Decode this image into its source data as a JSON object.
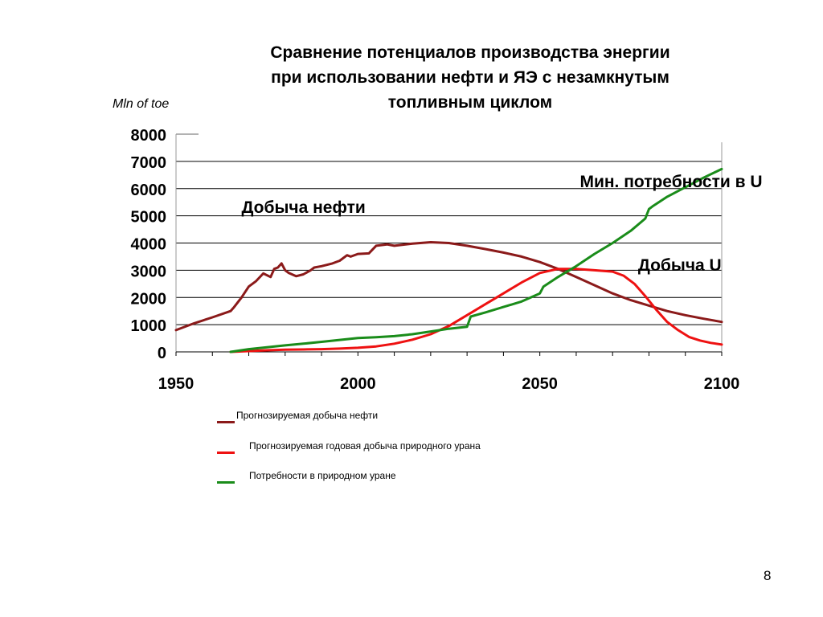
{
  "page_number": "8",
  "chart_data": {
    "type": "line",
    "title_lines": [
      "Сравнение потенциалов производства энергии",
      "при использовании нефти и ЯЭ с незамкнутым",
      "топливным циклом"
    ],
    "ylabel": "Mln of toe",
    "xlabel": "",
    "xlim": [
      1950,
      2100
    ],
    "ylim": [
      0,
      8000
    ],
    "x_ticks": [
      1950,
      2000,
      2050,
      2100
    ],
    "y_ticks": [
      0,
      1000,
      2000,
      3000,
      4000,
      5000,
      6000,
      7000,
      8000
    ],
    "grid": "horizontal",
    "legend_position": "bottom",
    "annotations": [
      {
        "text": "Добыча нефти",
        "x": 1968,
        "y": 5100
      },
      {
        "text": "Мин. потребности в U",
        "x": 2061,
        "y": 6050
      },
      {
        "text": "Добыча U",
        "x": 2077,
        "y": 2980
      }
    ],
    "series": [
      {
        "name": "Прогнозируемая добыча нефти",
        "color": "#8b1a1a",
        "x": [
          1950,
          1955,
          1960,
          1965,
          1966,
          1968,
          1970,
          1972,
          1974,
          1976,
          1977,
          1978,
          1979,
          1980,
          1981,
          1983,
          1985,
          1987,
          1988,
          1990,
          1993,
          1995,
          1997,
          1998,
          2000,
          2003,
          2005,
          2008,
          2010,
          2015,
          2020,
          2025,
          2030,
          2035,
          2040,
          2045,
          2050,
          2055,
          2060,
          2065,
          2070,
          2075,
          2080,
          2085,
          2090,
          2095,
          2100
        ],
        "y": [
          800,
          1050,
          1270,
          1500,
          1650,
          2000,
          2400,
          2600,
          2880,
          2750,
          3050,
          3100,
          3250,
          3000,
          2900,
          2780,
          2850,
          3000,
          3100,
          3150,
          3250,
          3350,
          3550,
          3500,
          3600,
          3620,
          3900,
          3950,
          3900,
          3980,
          4030,
          4000,
          3900,
          3780,
          3650,
          3500,
          3300,
          3050,
          2750,
          2450,
          2150,
          1900,
          1700,
          1500,
          1350,
          1220,
          1100
        ]
      },
      {
        "name": "Прогнозируемая годовая добыча природного урана",
        "color": "#ee1111",
        "x": [
          1965,
          1970,
          1975,
          1980,
          1985,
          1990,
          1995,
          2000,
          2005,
          2010,
          2015,
          2020,
          2025,
          2030,
          2035,
          2040,
          2045,
          2050,
          2055,
          2060,
          2065,
          2070,
          2073,
          2076,
          2079,
          2082,
          2085,
          2088,
          2091,
          2094,
          2097,
          2100
        ],
        "y": [
          0,
          30,
          60,
          80,
          90,
          100,
          120,
          150,
          200,
          300,
          450,
          650,
          950,
          1350,
          1750,
          2150,
          2550,
          2900,
          3050,
          3050,
          3000,
          2950,
          2800,
          2500,
          2050,
          1550,
          1100,
          800,
          550,
          420,
          330,
          270
        ]
      },
      {
        "name": "Потребности в природном уране",
        "color": "#1a8c1a",
        "x": [
          1965,
          1970,
          1975,
          1980,
          1985,
          1990,
          1995,
          2000,
          2005,
          2010,
          2015,
          2020,
          2025,
          2030,
          2031,
          2035,
          2040,
          2045,
          2050,
          2051,
          2055,
          2060,
          2065,
          2070,
          2075,
          2079,
          2080,
          2081,
          2085,
          2090,
          2095,
          2100
        ],
        "y": [
          0,
          100,
          170,
          240,
          300,
          370,
          440,
          510,
          540,
          580,
          650,
          750,
          850,
          920,
          1300,
          1450,
          1650,
          1850,
          2150,
          2400,
          2750,
          3150,
          3600,
          4000,
          4450,
          4900,
          5250,
          5350,
          5700,
          6050,
          6400,
          6720
        ]
      }
    ]
  }
}
